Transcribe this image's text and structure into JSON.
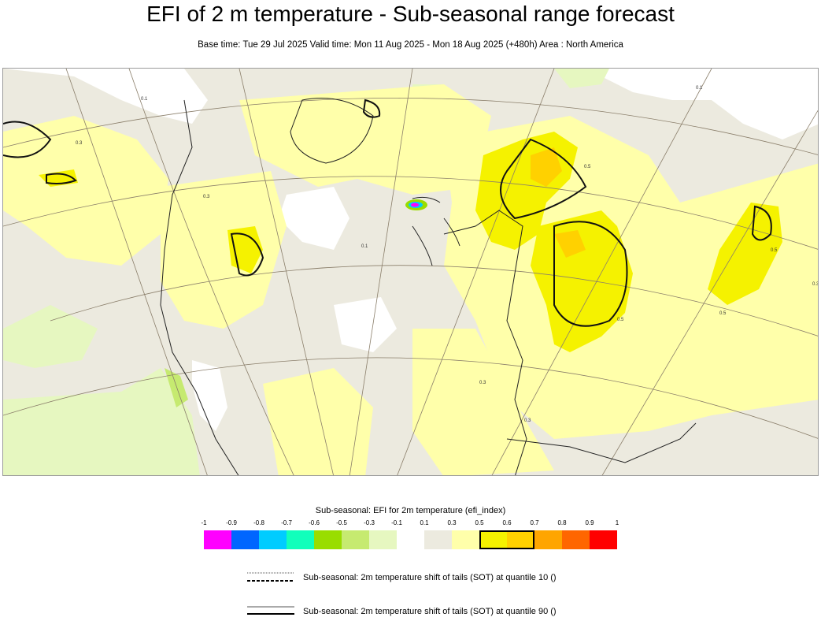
{
  "header": {
    "title": "EFI of 2 m temperature - Sub-seasonal range forecast",
    "subtitle": "Base time: Tue 29 Jul 2025 Valid time: Mon 11 Aug 2025 - Mon 18 Aug 2025 (+480h) Area : North America"
  },
  "map": {
    "region": "North America",
    "contour_labels": [
      "0.1",
      "0.3",
      "0.5"
    ]
  },
  "legend": {
    "title": "Sub-seasonal: EFI for 2m temperature (efi_index)",
    "ticks": [
      "-1",
      "-0.9",
      "-0.8",
      "-0.7",
      "-0.6",
      "-0.5",
      "-0.3",
      "-0.1",
      "0.1",
      "0.3",
      "0.5",
      "0.6",
      "0.7",
      "0.8",
      "0.9",
      "1"
    ],
    "colors": [
      "#ff00ff",
      "#0066ff",
      "#00ccff",
      "#11ffbb",
      "#99dd00",
      "#c6ea70",
      "#e6f7c0",
      "#ffffff",
      "#eceadf",
      "#ffffaa",
      "#f5f200",
      "#ffd100",
      "#ffa500",
      "#ff6600",
      "#ff0000"
    ],
    "highlighted_band": "0.5 - 0.7"
  },
  "sot": {
    "q10_label": "Sub-seasonal: 2m temperature shift of tails (SOT) at quantile 10 ()",
    "q90_label": "Sub-seasonal: 2m temperature shift of tails (SOT) at quantile 90 ()"
  }
}
